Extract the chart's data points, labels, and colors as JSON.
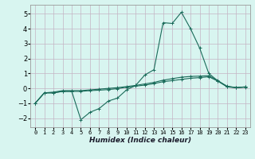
{
  "xlabel": "Humidex (Indice chaleur)",
  "background_color": "#d8f5f0",
  "grid_color": "#c4b4c4",
  "line_color": "#1a6b5a",
  "xlim": [
    -0.5,
    23.5
  ],
  "ylim": [
    -2.6,
    5.6
  ],
  "yticks": [
    -2,
    -1,
    0,
    1,
    2,
    3,
    4,
    5
  ],
  "xticks": [
    0,
    1,
    2,
    3,
    4,
    5,
    6,
    7,
    8,
    9,
    10,
    11,
    12,
    13,
    14,
    15,
    16,
    17,
    18,
    19,
    20,
    21,
    22,
    23
  ],
  "line1_x": [
    0,
    1,
    2,
    3,
    4,
    5,
    6,
    7,
    8,
    9,
    10,
    11,
    12,
    13,
    14,
    15,
    16,
    17,
    18,
    19,
    20,
    21,
    22,
    23
  ],
  "line1_y": [
    -1.0,
    -0.3,
    -0.3,
    -0.2,
    -0.2,
    -2.1,
    -1.6,
    -1.35,
    -0.85,
    -0.65,
    -0.1,
    0.2,
    0.9,
    1.25,
    4.4,
    4.35,
    5.1,
    4.0,
    2.7,
    1.0,
    0.5,
    0.15,
    0.05,
    0.1
  ],
  "line2_x": [
    0,
    1,
    2,
    3,
    4,
    5,
    6,
    7,
    8,
    9,
    10,
    11,
    12,
    13,
    14,
    15,
    16,
    17,
    18,
    19,
    20,
    21,
    22,
    23
  ],
  "line2_y": [
    -1.0,
    -0.3,
    -0.25,
    -0.15,
    -0.15,
    -0.15,
    -0.1,
    -0.05,
    0.0,
    0.05,
    0.12,
    0.2,
    0.3,
    0.4,
    0.55,
    0.65,
    0.75,
    0.8,
    0.82,
    0.85,
    0.52,
    0.12,
    0.06,
    0.1
  ],
  "line3_x": [
    0,
    1,
    2,
    3,
    4,
    5,
    6,
    7,
    8,
    9,
    10,
    11,
    12,
    13,
    14,
    15,
    16,
    17,
    18,
    19,
    20,
    21,
    22,
    23
  ],
  "line3_y": [
    -1.0,
    -0.3,
    -0.3,
    -0.2,
    -0.2,
    -0.2,
    -0.15,
    -0.12,
    -0.08,
    -0.02,
    0.08,
    0.15,
    0.22,
    0.32,
    0.45,
    0.52,
    0.6,
    0.68,
    0.72,
    0.78,
    0.48,
    0.1,
    0.04,
    0.08
  ]
}
